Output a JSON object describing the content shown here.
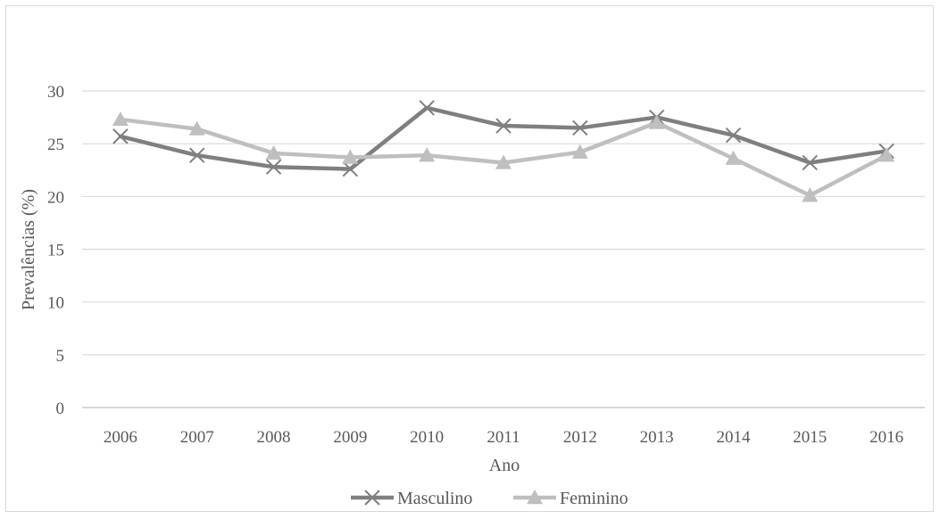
{
  "chart_data": {
    "type": "line",
    "title": "",
    "xlabel": "Ano",
    "ylabel": "Prevalências (%)",
    "ylim": [
      0,
      30
    ],
    "yticks": [
      0,
      5,
      10,
      15,
      20,
      25,
      30
    ],
    "categories": [
      "2006",
      "2007",
      "2008",
      "2009",
      "2010",
      "2011",
      "2012",
      "2013",
      "2014",
      "2015",
      "2016"
    ],
    "grid": "horizontal",
    "legend_position": "bottom",
    "series": [
      {
        "name": "Masculino",
        "marker": "x",
        "color": "#7f7f7f",
        "values": [
          25.7,
          23.9,
          22.8,
          22.6,
          28.4,
          26.7,
          26.5,
          27.5,
          25.8,
          23.2,
          24.3
        ]
      },
      {
        "name": "Feminino",
        "marker": "triangle",
        "color": "#bfbfbf",
        "values": [
          27.3,
          26.4,
          24.1,
          23.7,
          23.9,
          23.2,
          24.2,
          27.0,
          23.6,
          20.1,
          23.9
        ]
      }
    ]
  }
}
